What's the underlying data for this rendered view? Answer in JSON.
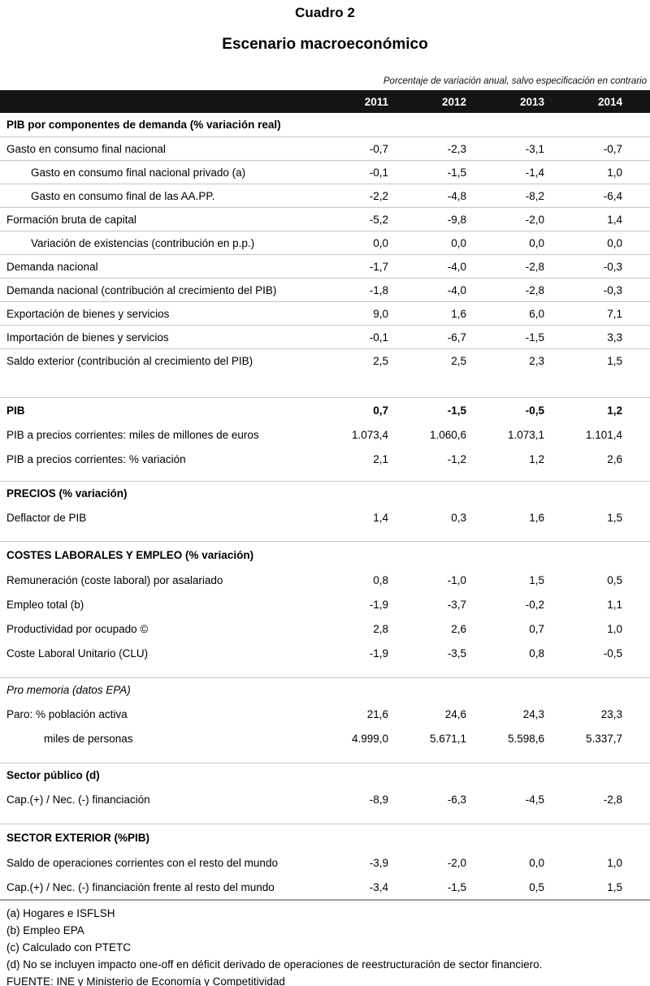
{
  "header": {
    "title": "Cuadro 2",
    "subtitle": "Escenario macroeconómico",
    "note": "Porcentaje de variación anual, salvo especificación en contrario"
  },
  "table": {
    "years": [
      "2011",
      "2012",
      "2013",
      "2014"
    ],
    "rows": [
      {
        "label": "PIB por componentes de demanda (% variación real)",
        "values": [
          "",
          "",
          "",
          ""
        ]
      },
      {
        "label": "Gasto en consumo final nacional",
        "values": [
          "-0,7",
          "-2,3",
          "-3,1",
          "-0,7"
        ]
      },
      {
        "label": "Gasto en consumo final nacional privado (a)",
        "values": [
          "-0,1",
          "-1,5",
          "-1,4",
          "1,0"
        ]
      },
      {
        "label": "Gasto en consumo final de las AA.PP.",
        "values": [
          "-2,2",
          "-4,8",
          "-8,2",
          "-6,4"
        ]
      },
      {
        "label": "Formación bruta de capital",
        "values": [
          "-5,2",
          "-9,8",
          "-2,0",
          "1,4"
        ]
      },
      {
        "label": "Variación de existencias (contribución en p.p.)",
        "values": [
          "0,0",
          "0,0",
          "0,0",
          "0,0"
        ]
      },
      {
        "label": "Demanda nacional",
        "values": [
          "-1,7",
          "-4,0",
          "-2,8",
          "-0,3"
        ]
      },
      {
        "label": "Demanda nacional (contribución al crecimiento del PIB)",
        "values": [
          "-1,8",
          "-4,0",
          "-2,8",
          "-0,3"
        ]
      },
      {
        "label": "Exportación de bienes y servicios",
        "values": [
          "9,0",
          "1,6",
          "6,0",
          "7,1"
        ]
      },
      {
        "label": "Importación de bienes y servicios",
        "values": [
          "-0,1",
          "-6,7",
          "-1,5",
          "3,3"
        ]
      },
      {
        "label": "Saldo exterior (contribución al crecimiento del PIB)",
        "values": [
          "2,5",
          "2,5",
          "2,3",
          "1,5"
        ]
      },
      {
        "label": "PIB",
        "values": [
          "0,7",
          "-1,5",
          "-0,5",
          "1,2"
        ]
      },
      {
        "label": "PIB a precios corrientes: miles de millones de euros",
        "values": [
          "1.073,4",
          "1.060,6",
          "1.073,1",
          "1.101,4"
        ]
      },
      {
        "label": "PIB a precios corrientes: % variación",
        "values": [
          "2,1",
          "-1,2",
          "1,2",
          "2,6"
        ]
      },
      {
        "label": "PRECIOS (% variación)",
        "values": [
          "",
          "",
          "",
          ""
        ]
      },
      {
        "label": "Deflactor de PIB",
        "values": [
          "1,4",
          "0,3",
          "1,6",
          "1,5"
        ]
      },
      {
        "label": "COSTES LABORALES Y EMPLEO (% variación)",
        "values": [
          "",
          "",
          "",
          ""
        ]
      },
      {
        "label": "Remuneración (coste laboral) por asalariado",
        "values": [
          "0,8",
          "-1,0",
          "1,5",
          "0,5"
        ]
      },
      {
        "label": "Empleo total (b)",
        "values": [
          "-1,9",
          "-3,7",
          "-0,2",
          "1,1"
        ]
      },
      {
        "label": "Productividad por ocupado ©",
        "values": [
          "2,8",
          "2,6",
          "0,7",
          "1,0"
        ]
      },
      {
        "label": "Coste Laboral Unitario (CLU)",
        "values": [
          "-1,9",
          "-3,5",
          "0,8",
          "-0,5"
        ]
      },
      {
        "label": "Pro memoria (datos EPA)",
        "values": [
          "",
          "",
          "",
          ""
        ]
      },
      {
        "label": "Paro: % población activa",
        "values": [
          "21,6",
          "24,6",
          "24,3",
          "23,3"
        ]
      },
      {
        "label": "miles de personas",
        "values": [
          "4.999,0",
          "5.671,1",
          "5.598,6",
          "5.337,7"
        ]
      },
      {
        "label": "Sector público (d)",
        "values": [
          "",
          "",
          "",
          ""
        ]
      },
      {
        "label": "Cap.(+) / Nec. (-) financiación",
        "values": [
          "-8,9",
          "-6,3",
          "-4,5",
          "-2,8"
        ]
      },
      {
        "label": "SECTOR EXTERIOR (%PIB)",
        "values": [
          "",
          "",
          "",
          ""
        ]
      },
      {
        "label": "Saldo de operaciones corrientes con el resto del mundo",
        "values": [
          "-3,9",
          "-2,0",
          "0,0",
          "1,0"
        ]
      },
      {
        "label": "Cap.(+) / Nec. (-) financiación frente al resto del mundo",
        "values": [
          "-3,4",
          "-1,5",
          "0,5",
          "1,5"
        ]
      }
    ]
  },
  "footnotes": [
    "(a) Hogares e ISFLSH",
    "(b) Empleo EPA",
    "(c) Calculado con PTETC",
    "(d) No se incluyen impacto one-off en déficit derivado de operaciones de reestructuración de sector financiero.",
    "FUENTE: INE y Ministerio de Economía y Competitividad"
  ],
  "colors": {
    "header_bar_bg": "#151515",
    "header_bar_text": "#ffffff",
    "row_divider": "#c6c6c6",
    "table_bottom_border": "#9e9e9e"
  }
}
